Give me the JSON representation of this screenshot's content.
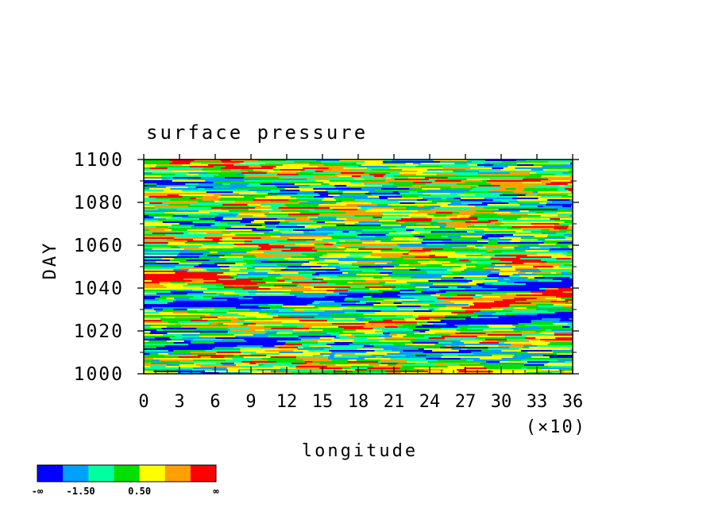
{
  "chart_data": {
    "type": "heatmap",
    "title": "surface pressure",
    "xlabel": "longitude",
    "ylabel": "DAY",
    "x_multiplier_label": "(×10)",
    "xlim": [
      0,
      36
    ],
    "ylim": [
      1000,
      1100
    ],
    "x_ticks": [
      "0",
      "3",
      "6",
      "9",
      "12",
      "15",
      "18",
      "21",
      "24",
      "27",
      "30",
      "33",
      "36"
    ],
    "y_ticks": [
      "1000",
      "1020",
      "1040",
      "1060",
      "1080",
      "1100"
    ],
    "colorbar": {
      "colors": [
        "#0000ff",
        "#00a0ff",
        "#00ffa0",
        "#00e000",
        "#ffff00",
        "#ffa000",
        "#ff0000"
      ],
      "labels": [
        "-∞",
        "-1.50",
        "0.50",
        "∞"
      ]
    },
    "features": {
      "dominant_pattern": "noisy horizontal streaks with bands drifting eastward over time",
      "notable_bands": [
        {
          "color": "blue",
          "from": [
            0,
            1031
          ],
          "to": [
            36,
            1042
          ]
        },
        {
          "color": "red",
          "from": [
            12,
            1013
          ],
          "to": [
            36,
            1040
          ]
        },
        {
          "color": "blue",
          "from": [
            0,
            1010
          ],
          "to": [
            36,
            1028
          ]
        },
        {
          "color": "red",
          "from": [
            0,
            1045
          ],
          "to": [
            6,
            1045
          ]
        }
      ]
    }
  }
}
